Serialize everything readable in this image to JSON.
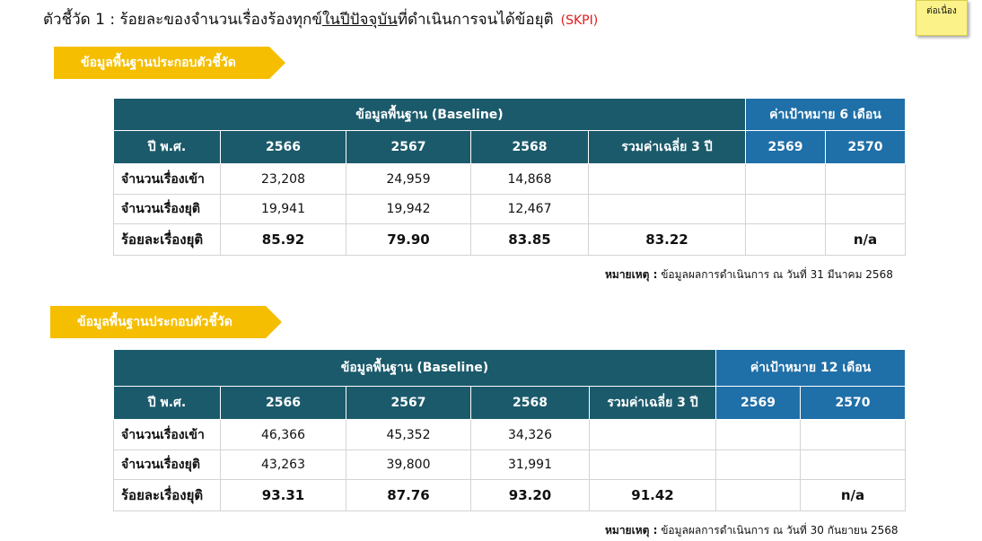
{
  "title": {
    "prefix": "ตัวชี้วัด 1 : ร้อยละของจำนวนเรื่องร้องทุกข์",
    "underlined": "ในปีปัจจุบัน",
    "suffix": "ที่ดำเนินการจนได้ข้อยุติ",
    "tag": "(SKPI)"
  },
  "sticky_note": "ต่อเนื่อง",
  "colors": {
    "header_dark": "#1b5a6b",
    "header_blue": "#1f6fa8",
    "banner": "#f5be00",
    "tag": "#e01b1b"
  },
  "sections": [
    {
      "banner": "ข้อมูลพื้นฐานประกอบตัวชี้วัด",
      "baseline_header": "ข้อมูลพื้นฐาน (Baseline)",
      "target_header": "ค่าเป้าหมาย 6 เดือน",
      "columns": [
        "ปี พ.ศ.",
        "2566",
        "2567",
        "2568",
        "รวมค่าเฉลี่ย 3 ปี",
        "2569",
        "2570"
      ],
      "rows": [
        [
          "จำนวนเรื่องเข้า",
          "23,208",
          "24,959",
          "14,868",
          "",
          "",
          ""
        ],
        [
          "จำนวนเรื่องยุติ",
          "19,941",
          "19,942",
          "12,467",
          "",
          "",
          ""
        ],
        [
          "ร้อยละเรื่องยุติ",
          "85.92",
          "79.90",
          "83.85",
          "83.22",
          "",
          "n/a"
        ]
      ],
      "remark_label": "หมายเหตุ :",
      "remark_text": " ข้อมูลผลการดำเนินการ ณ วันที่  31 มีนาคม 2568"
    },
    {
      "banner": "ข้อมูลพื้นฐานประกอบตัวชี้วัด",
      "baseline_header": "ข้อมูลพื้นฐาน (Baseline)",
      "target_header": "ค่าเป้าหมาย 12 เดือน",
      "columns": [
        "ปี พ.ศ.",
        "2566",
        "2567",
        "2568",
        "รวมค่าเฉลี่ย 3 ปี",
        "2569",
        "2570"
      ],
      "rows": [
        [
          "จำนวนเรื่องเข้า",
          "46,366",
          "45,352",
          "34,326",
          "",
          "",
          ""
        ],
        [
          "จำนวนเรื่องยุติ",
          "43,263",
          "39,800",
          "31,991",
          "",
          "",
          ""
        ],
        [
          "ร้อยละเรื่องยุติ",
          "93.31",
          "87.76",
          "93.20",
          "91.42",
          "",
          "n/a"
        ]
      ],
      "remark_label": "หมายเหตุ :",
      "remark_text": " ข้อมูลผลการดำเนินการ ณ วันที่  30 กันยายน 2568"
    }
  ]
}
